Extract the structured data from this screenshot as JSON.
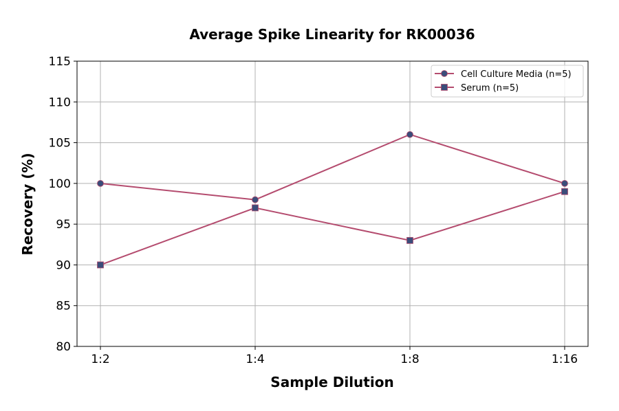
{
  "chart_data": {
    "type": "line",
    "title": "Average Spike Linearity for RK00036",
    "xlabel": "Sample Dilution",
    "ylabel": "Recovery (%)",
    "categories": [
      "1:2",
      "1:4",
      "1:8",
      "1:16"
    ],
    "ylim": [
      80,
      115
    ],
    "yticks": [
      80,
      85,
      90,
      95,
      100,
      105,
      110,
      115
    ],
    "grid": true,
    "legend": "top-right",
    "line_color": "#b44b6e",
    "marker_color": "#3b4d7a",
    "series": [
      {
        "name": "Cell Culture Media (n=5)",
        "marker": "circle",
        "values": [
          100,
          98,
          106,
          100
        ]
      },
      {
        "name": "Serum (n=5)",
        "marker": "square",
        "values": [
          90,
          97,
          93,
          99
        ]
      }
    ]
  }
}
